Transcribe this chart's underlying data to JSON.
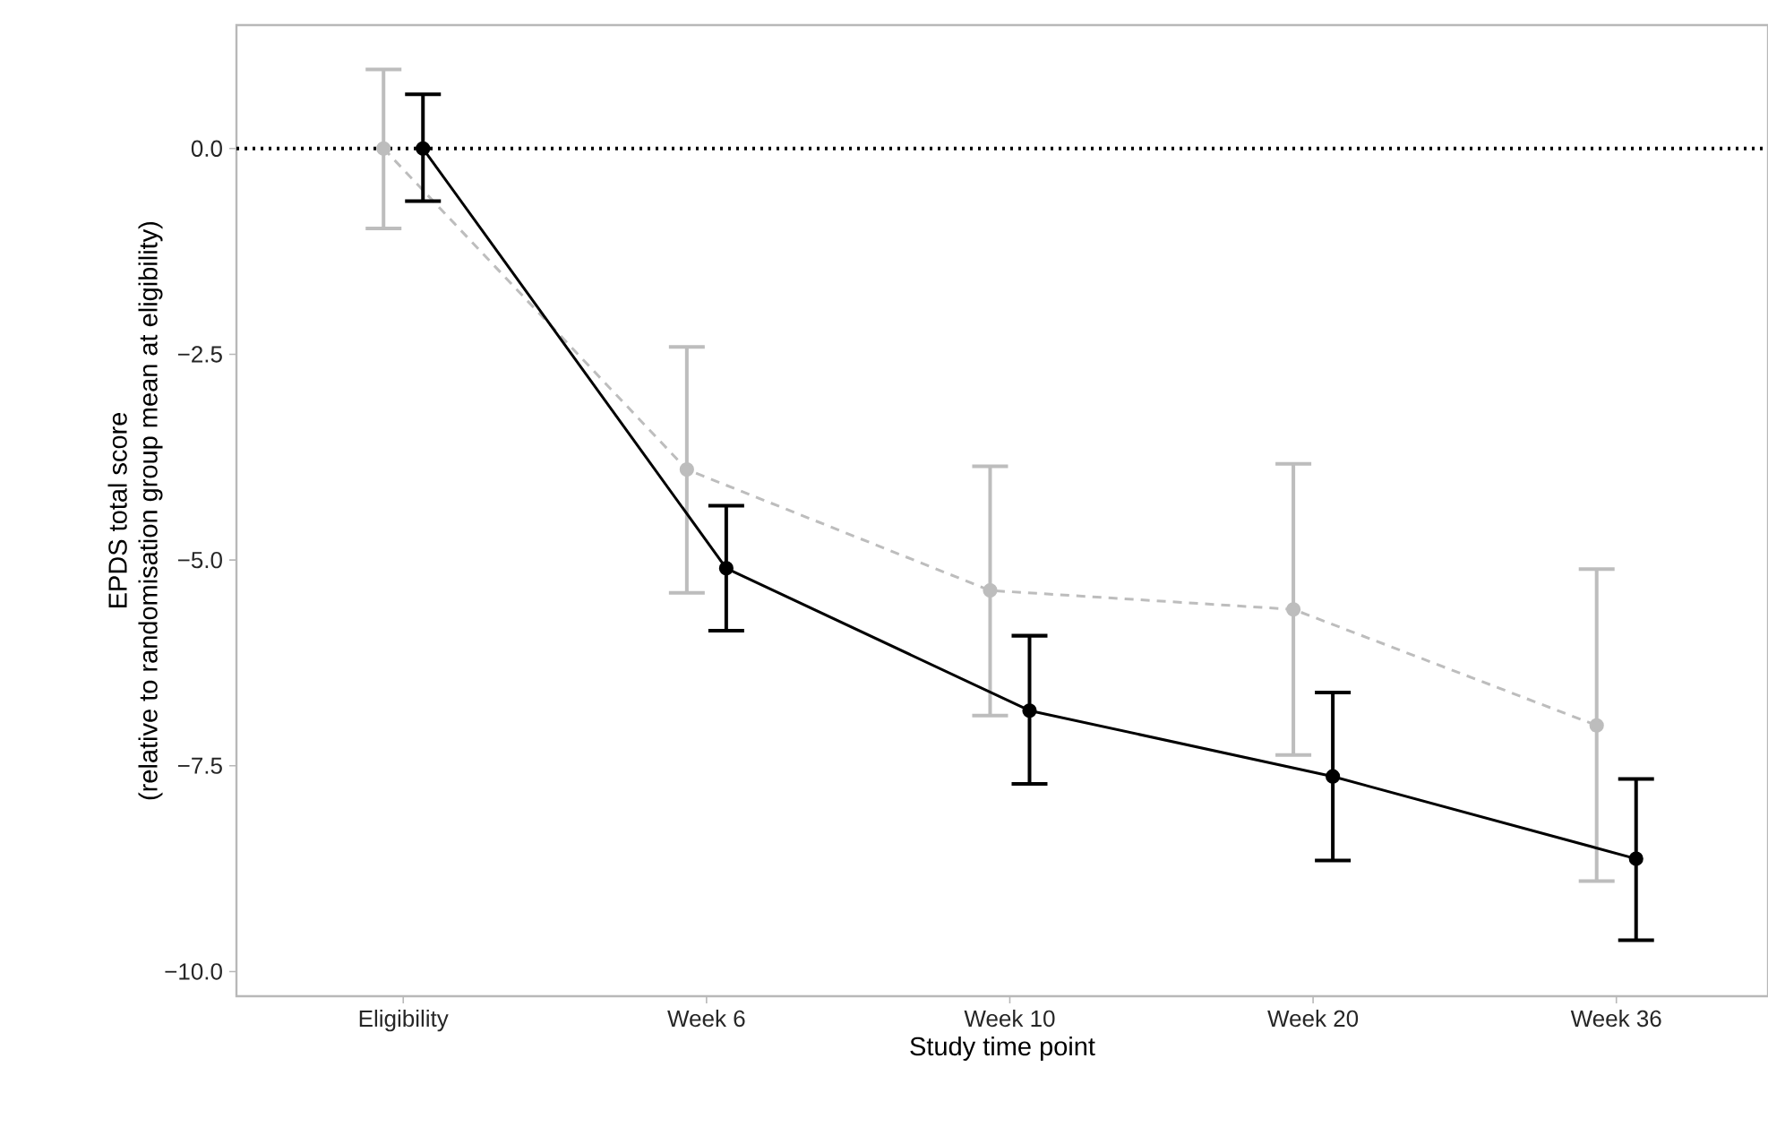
{
  "chart_data": {
    "type": "line",
    "xlabel": "Study time point",
    "ylabel": "EPDS total score\n(relative to randomisation group mean at eligibility)",
    "categories": [
      "Eligibility",
      "Week 6",
      "Week 10",
      "Week 20",
      "Week 36"
    ],
    "series": [
      {
        "color": "#bdbdbd",
        "line_style": "dashed",
        "values": [
          0.0,
          -3.9,
          -5.37,
          -5.6,
          -7.01
        ],
        "errors": [
          [
            -0.97,
            0.96
          ],
          [
            -5.4,
            -2.41
          ],
          [
            -6.89,
            -3.86
          ],
          [
            -7.37,
            -3.83
          ],
          [
            -8.9,
            -5.11
          ]
        ]
      },
      {
        "color": "#000000",
        "line_style": "solid",
        "values": [
          0.0,
          -5.1,
          -6.83,
          -7.63,
          -8.63
        ],
        "errors": [
          [
            -0.64,
            0.66
          ],
          [
            -5.86,
            -4.34
          ],
          [
            -7.72,
            -5.92
          ],
          [
            -8.65,
            -6.61
          ],
          [
            -9.62,
            -7.66
          ]
        ]
      }
    ],
    "ylim": [
      -10.3,
      1.5
    ],
    "yticks": [
      {
        "value": 0,
        "label": "0.0"
      },
      {
        "value": -2.5,
        "label": "−2.5"
      },
      {
        "value": -5,
        "label": "−5.0"
      },
      {
        "value": -7.5,
        "label": "−7.5"
      },
      {
        "value": -10,
        "label": "−10.0"
      }
    ],
    "ref_lines": [
      {
        "axis": "y",
        "value": 0,
        "color": "#000000",
        "line_style": "dotted"
      }
    ],
    "marker": "circle"
  }
}
